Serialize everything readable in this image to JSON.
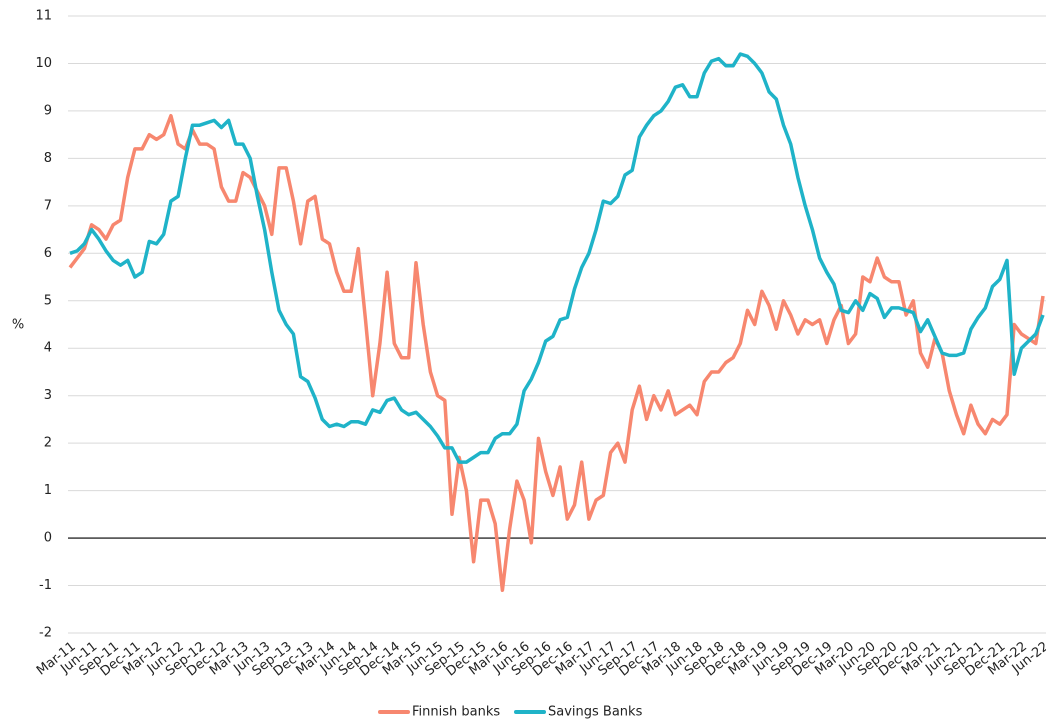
{
  "chart_data": {
    "type": "line",
    "y_label": "%",
    "categories": [
      "Mar-11",
      null,
      null,
      "Jun-11",
      null,
      null,
      "Sep-11",
      null,
      null,
      "Dec-11",
      null,
      null,
      "Mar-12",
      null,
      null,
      "Jun-12",
      null,
      null,
      "Sep-12",
      null,
      null,
      "Dec-12",
      null,
      null,
      "Mar-13",
      null,
      null,
      "Jun-13",
      null,
      null,
      "Sep-13",
      null,
      null,
      "Dec-13",
      null,
      null,
      "Mar-14",
      null,
      null,
      "Jun-14",
      null,
      null,
      "Sep-14",
      null,
      null,
      "Dec-14",
      null,
      null,
      "Mar-15",
      null,
      null,
      "Jun-15",
      null,
      null,
      "Sep-15",
      null,
      null,
      "Dec-15",
      null,
      null,
      "Mar-16",
      null,
      null,
      "Jun-16",
      null,
      null,
      "Sep-16",
      null,
      null,
      "Dec-16",
      null,
      null,
      "Mar-17",
      null,
      null,
      "Jun-17",
      null,
      null,
      "Sep-17",
      null,
      null,
      "Dec-17",
      null,
      null,
      "Mar-18",
      null,
      null,
      "Jun-18",
      null,
      null,
      "Sep-18",
      null,
      null,
      "Dec-18",
      null,
      null,
      "Mar-19",
      null,
      null,
      "Jun-19",
      null,
      null,
      "Sep-19",
      null,
      null,
      "Dec-19",
      null,
      null,
      "Mar-20",
      null,
      null,
      "Jun-20",
      null,
      null,
      "Sep-20",
      null,
      null,
      "Dec-20",
      null,
      null,
      "Mar-21",
      null,
      null,
      "Jun-21",
      null,
      null,
      "Sep-21",
      null,
      null,
      "Dec-21",
      null,
      null,
      "Mar-22",
      null,
      null,
      "Jun-22"
    ],
    "series": [
      {
        "name": "Finnish banks",
        "color": "#f7876f",
        "values": [
          5.7,
          5.9,
          6.1,
          6.6,
          6.5,
          6.3,
          6.6,
          6.7,
          7.6,
          8.2,
          8.2,
          8.5,
          8.4,
          8.5,
          8.9,
          8.3,
          8.2,
          8.6,
          8.3,
          8.3,
          8.2,
          7.4,
          7.1,
          7.1,
          7.7,
          7.6,
          7.3,
          7.0,
          6.4,
          7.8,
          7.8,
          7.1,
          6.2,
          7.1,
          7.2,
          6.3,
          6.2,
          5.6,
          5.2,
          5.2,
          6.1,
          4.6,
          3.0,
          4.1,
          5.6,
          4.1,
          3.8,
          3.8,
          5.8,
          4.5,
          3.5,
          3.0,
          2.9,
          0.5,
          1.7,
          1.0,
          -0.5,
          0.8,
          0.8,
          0.3,
          -1.1,
          0.2,
          1.2,
          0.8,
          -0.1,
          2.1,
          1.4,
          0.9,
          1.5,
          0.4,
          0.7,
          1.6,
          0.4,
          0.8,
          0.9,
          1.8,
          2.0,
          1.6,
          2.7,
          3.2,
          2.5,
          3.0,
          2.7,
          3.1,
          2.6,
          2.7,
          2.8,
          2.6,
          3.3,
          3.5,
          3.5,
          3.7,
          3.8,
          4.1,
          4.8,
          4.5,
          5.2,
          4.9,
          4.4,
          5.0,
          4.7,
          4.3,
          4.6,
          4.5,
          4.6,
          4.1,
          4.6,
          4.9,
          4.1,
          4.3,
          5.5,
          5.4,
          5.9,
          5.5,
          5.4,
          5.4,
          4.7,
          5.0,
          3.9,
          3.6,
          4.2,
          3.9,
          3.1,
          2.6,
          2.2,
          2.8,
          2.4,
          2.2,
          2.5,
          2.4,
          2.6,
          4.5,
          4.3,
          4.2,
          4.1,
          5.1
        ]
      },
      {
        "name": "Savings Banks",
        "color": "#1fb3c8",
        "values": [
          6.0,
          6.05,
          6.2,
          6.5,
          6.3,
          6.05,
          5.85,
          5.75,
          5.85,
          5.5,
          5.6,
          6.25,
          6.2,
          6.4,
          7.1,
          7.2,
          8.0,
          8.7,
          8.7,
          8.75,
          8.8,
          8.65,
          8.8,
          8.3,
          8.3,
          8.0,
          7.2,
          6.5,
          5.6,
          4.8,
          4.5,
          4.3,
          3.4,
          3.3,
          2.95,
          2.5,
          2.35,
          2.4,
          2.35,
          2.45,
          2.45,
          2.4,
          2.7,
          2.65,
          2.9,
          2.95,
          2.7,
          2.6,
          2.65,
          2.5,
          2.35,
          2.15,
          1.9,
          1.9,
          1.6,
          1.6,
          1.7,
          1.8,
          1.8,
          2.1,
          2.2,
          2.2,
          2.4,
          3.1,
          3.35,
          3.7,
          4.15,
          4.25,
          4.6,
          4.65,
          5.25,
          5.7,
          6.0,
          6.5,
          7.1,
          7.05,
          7.2,
          7.65,
          7.75,
          8.45,
          8.7,
          8.9,
          9.0,
          9.2,
          9.5,
          9.55,
          9.3,
          9.3,
          9.8,
          10.05,
          10.1,
          9.95,
          9.95,
          10.2,
          10.15,
          10.0,
          9.8,
          9.4,
          9.25,
          8.7,
          8.3,
          7.6,
          7.0,
          6.5,
          5.9,
          5.6,
          5.35,
          4.8,
          4.75,
          5.0,
          4.8,
          5.15,
          5.05,
          4.65,
          4.85,
          4.85,
          4.8,
          4.75,
          4.35,
          4.6,
          4.25,
          3.9,
          3.85,
          3.85,
          3.9,
          4.4,
          4.65,
          4.85,
          5.3,
          5.45,
          5.85,
          3.45,
          4.0,
          4.15,
          4.3,
          4.7
        ]
      }
    ],
    "ylim": [
      -2,
      11
    ],
    "yticks": [
      -2,
      -1,
      0,
      1,
      2,
      3,
      4,
      5,
      6,
      7,
      8,
      9,
      10,
      11
    ],
    "grid": true,
    "legend": "bottom"
  }
}
